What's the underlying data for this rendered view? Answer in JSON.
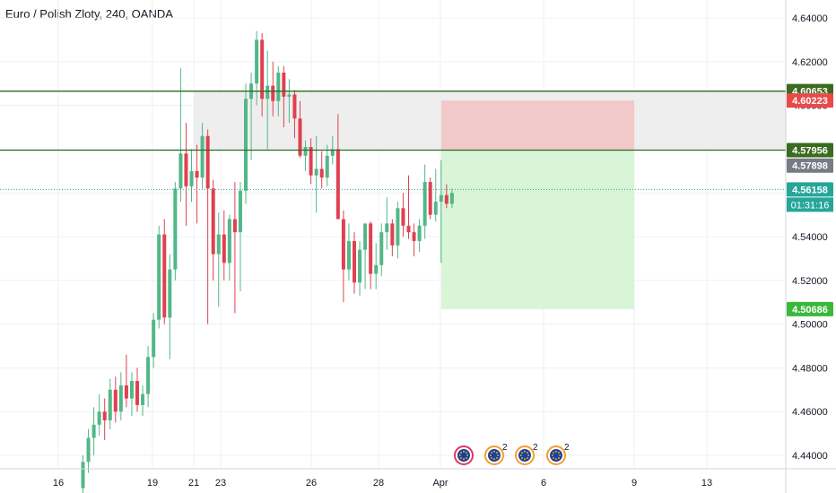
{
  "chart_title": "Euro / Polish Zloty, 240, OANDA",
  "colors": {
    "up": "#26a69a",
    "up_fill": "#52b788",
    "down": "#e04050",
    "grid": "#eef0f3",
    "zone_line": "#2e6b1f",
    "zone_fill": "#ebebeb",
    "stop_fill": "#f2c4c4",
    "target_fill": "#d4f4d4",
    "last_price": "#26a69a",
    "price_label_green": "#3a6b1e",
    "price_label_red": "#e84a4a",
    "price_label_gray": "#787b86",
    "target_label": "#3ab83a"
  },
  "chart_data": {
    "type": "candlestick",
    "title": "Euro / Polish Zloty, 240, OANDA",
    "ylim": [
      4.428,
      4.648
    ],
    "y_ticks": [
      "4.64000",
      "4.62000",
      "4.60000",
      "4.58000",
      "4.56000",
      "4.54000",
      "4.52000",
      "4.50000",
      "4.48000",
      "4.46000",
      "4.44000"
    ],
    "x_ticks": [
      "16",
      "19",
      "21",
      "23",
      "26",
      "28",
      "Apr",
      "6",
      "9",
      "13"
    ],
    "candles": [
      [
        4.425,
        4.44,
        4.42,
        4.437
      ],
      [
        4.437,
        4.452,
        4.432,
        4.448
      ],
      [
        4.448,
        4.462,
        4.44,
        4.454
      ],
      [
        4.454,
        4.468,
        4.449,
        4.46
      ],
      [
        4.46,
        4.466,
        4.447,
        4.456
      ],
      [
        4.456,
        4.475,
        4.452,
        4.47
      ],
      [
        4.47,
        4.476,
        4.455,
        4.46
      ],
      [
        4.46,
        4.478,
        4.456,
        4.472
      ],
      [
        4.472,
        4.486,
        4.462,
        4.466
      ],
      [
        4.466,
        4.478,
        4.458,
        4.474
      ],
      [
        4.474,
        4.48,
        4.46,
        4.463
      ],
      [
        4.463,
        4.472,
        4.458,
        4.468
      ],
      [
        4.468,
        4.49,
        4.462,
        4.485
      ],
      [
        4.485,
        4.505,
        4.48,
        4.502
      ],
      [
        4.502,
        4.545,
        4.498,
        4.541
      ],
      [
        4.541,
        4.548,
        4.5,
        4.503
      ],
      [
        4.503,
        4.532,
        4.484,
        4.525
      ],
      [
        4.525,
        4.565,
        4.52,
        4.562
      ],
      [
        4.562,
        4.617,
        4.556,
        4.578
      ],
      [
        4.578,
        4.592,
        4.545,
        4.563
      ],
      [
        4.563,
        4.58,
        4.556,
        4.57
      ],
      [
        4.57,
        4.582,
        4.546,
        4.567
      ],
      [
        4.567,
        4.592,
        4.562,
        4.586
      ],
      [
        4.586,
        4.589,
        4.5,
        4.562
      ],
      [
        4.562,
        4.566,
        4.52,
        4.532
      ],
      [
        4.532,
        4.551,
        4.508,
        4.541
      ],
      [
        4.541,
        4.552,
        4.52,
        4.528
      ],
      [
        4.528,
        4.55,
        4.52,
        4.548
      ],
      [
        4.548,
        4.565,
        4.505,
        4.542
      ],
      [
        4.542,
        4.565,
        4.515,
        4.561
      ],
      [
        4.561,
        4.61,
        4.555,
        4.603
      ],
      [
        4.603,
        4.615,
        4.575,
        4.61
      ],
      [
        4.61,
        4.634,
        4.6,
        4.63
      ],
      [
        4.63,
        4.633,
        4.595,
        4.603
      ],
      [
        4.603,
        4.625,
        4.58,
        4.609
      ],
      [
        4.609,
        4.62,
        4.595,
        4.602
      ],
      [
        4.602,
        4.618,
        4.595,
        4.615
      ],
      [
        4.615,
        4.618,
        4.59,
        4.604
      ],
      [
        4.604,
        4.612,
        4.592,
        4.605
      ],
      [
        4.605,
        4.607,
        4.585,
        4.594
      ],
      [
        4.594,
        4.602,
        4.576,
        4.577
      ],
      [
        4.577,
        4.584,
        4.57,
        4.581
      ],
      [
        4.581,
        4.585,
        4.564,
        4.568
      ],
      [
        4.568,
        4.586,
        4.551,
        4.571
      ],
      [
        4.571,
        4.579,
        4.562,
        4.567
      ],
      [
        4.567,
        4.582,
        4.563,
        4.577
      ],
      [
        4.577,
        4.586,
        4.573,
        4.58
      ],
      [
        4.58,
        4.596,
        4.549,
        4.548
      ],
      [
        4.548,
        4.552,
        4.51,
        4.525
      ],
      [
        4.525,
        4.546,
        4.52,
        4.538
      ],
      [
        4.538,
        4.542,
        4.514,
        4.519
      ],
      [
        4.519,
        4.538,
        4.513,
        4.534
      ],
      [
        4.534,
        4.546,
        4.516,
        4.546
      ],
      [
        4.546,
        4.547,
        4.516,
        4.523
      ],
      [
        4.523,
        4.537,
        4.516,
        4.527
      ],
      [
        4.527,
        4.546,
        4.522,
        4.542
      ],
      [
        4.542,
        4.558,
        4.534,
        4.546
      ],
      [
        4.546,
        4.548,
        4.531,
        4.536
      ],
      [
        4.536,
        4.556,
        4.53,
        4.553
      ],
      [
        4.553,
        4.56,
        4.54,
        4.545
      ],
      [
        4.545,
        4.568,
        4.539,
        4.542
      ],
      [
        4.542,
        4.546,
        4.531,
        4.538
      ],
      [
        4.538,
        4.548,
        4.533,
        4.545
      ],
      [
        4.545,
        4.573,
        4.539,
        4.565
      ],
      [
        4.565,
        4.567,
        4.548,
        4.55
      ],
      [
        4.55,
        4.571,
        4.547,
        4.556
      ],
      [
        4.556,
        4.575,
        4.528,
        4.559
      ],
      [
        4.559,
        4.564,
        4.553,
        4.555
      ],
      [
        4.555,
        4.562,
        4.553,
        4.56
      ]
    ],
    "zone": {
      "top": 4.60653,
      "bottom": 4.57956,
      "x_start": "21"
    },
    "position": {
      "entry": 4.57956,
      "stop": 4.60223,
      "target": 4.50686,
      "x_end": "9"
    },
    "last_price": 4.56158,
    "labels": {
      "zone_top": "4.60653",
      "stop": "4.60223",
      "zone_bottom": "4.57956",
      "gray": "4.57898",
      "last": "4.56158",
      "countdown": "01:31:16",
      "target": "4.50686"
    },
    "event_markers": [
      {
        "type": "eu-flag",
        "badge": ""
      },
      {
        "type": "eu-flag",
        "badge": "2"
      },
      {
        "type": "eu-flag",
        "badge": "2"
      },
      {
        "type": "eu-flag",
        "badge": "2"
      }
    ]
  }
}
